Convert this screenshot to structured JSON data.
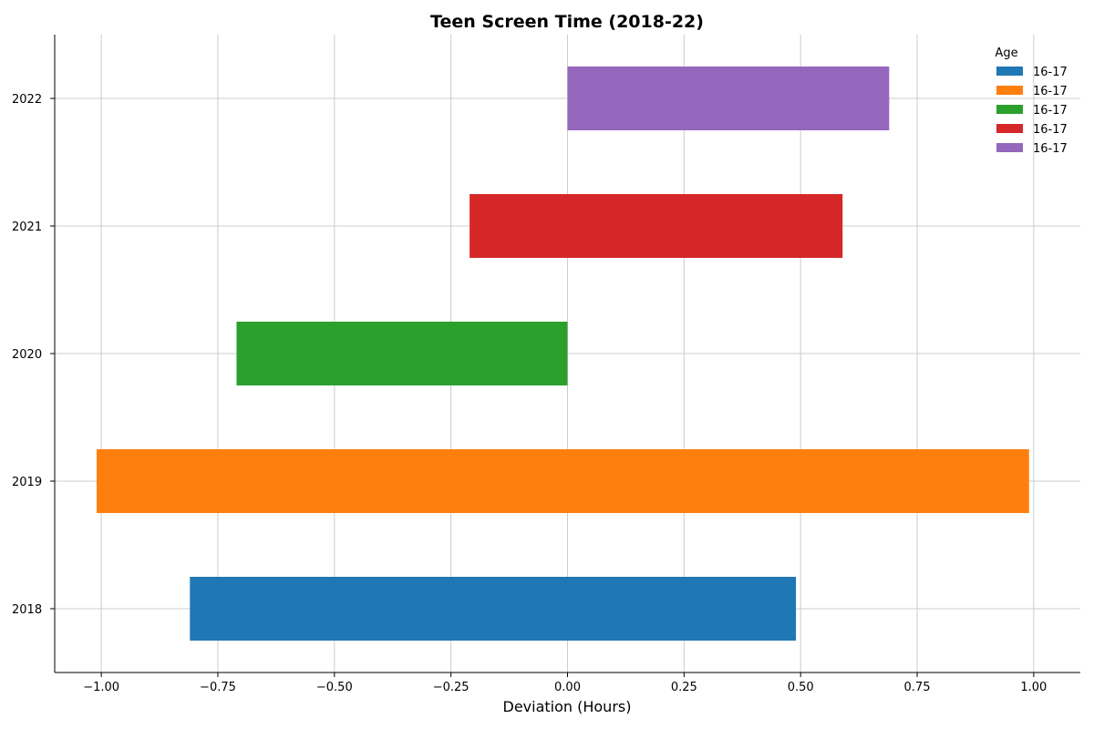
{
  "chart_data": {
    "type": "bar",
    "orientation": "horizontal",
    "title": "Teen Screen Time (2018-22)",
    "xlabel": "Deviation (Hours)",
    "ylabel": "",
    "xlim": [
      -1.1,
      1.1
    ],
    "xticks": [
      -1.0,
      -0.75,
      -0.5,
      -0.25,
      0.0,
      0.25,
      0.5,
      0.75,
      1.0
    ],
    "xtick_labels": [
      "−1.00",
      "−0.75",
      "−0.50",
      "−0.25",
      "0.00",
      "0.25",
      "0.50",
      "0.75",
      "1.00"
    ],
    "categories": [
      "2018",
      "2019",
      "2020",
      "2021",
      "2022"
    ],
    "series": [
      {
        "name": "16-17",
        "category": "2018",
        "start": -0.81,
        "end": 0.49,
        "color": "#1f77b4"
      },
      {
        "name": "16-17",
        "category": "2019",
        "start": -1.01,
        "end": 0.99,
        "color": "#ff7f0e"
      },
      {
        "name": "16-17",
        "category": "2020",
        "start": -0.71,
        "end": 0.0,
        "color": "#2ca02c"
      },
      {
        "name": "16-17",
        "category": "2021",
        "start": -0.21,
        "end": 0.59,
        "color": "#d62728"
      },
      {
        "name": "16-17",
        "category": "2022",
        "start": 0.0,
        "end": 0.69,
        "color": "#9467bd"
      }
    ],
    "legend": {
      "title": "Age",
      "placement": "top-right"
    },
    "grid": true
  }
}
